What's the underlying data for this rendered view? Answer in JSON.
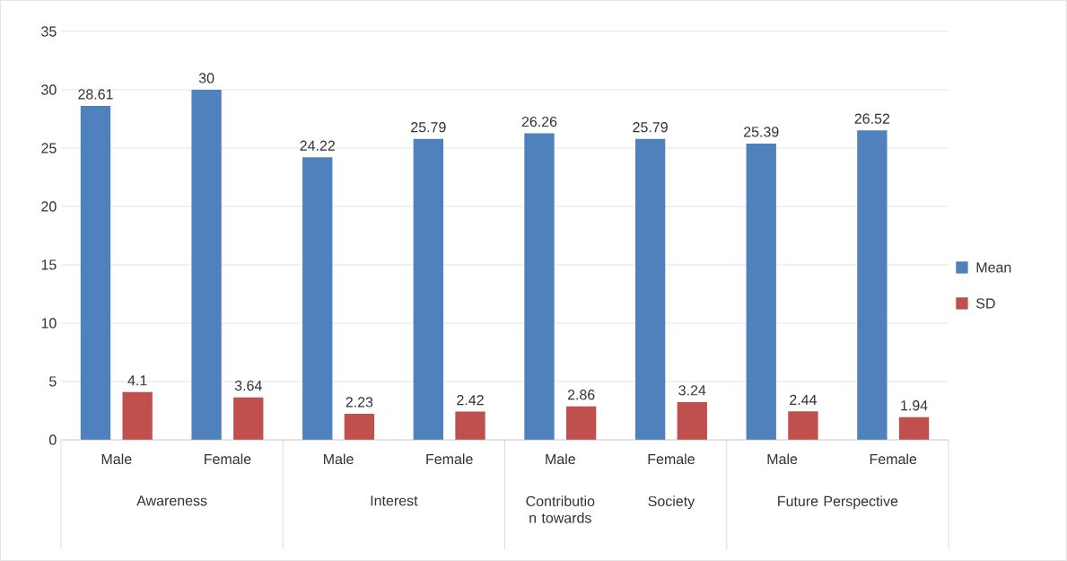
{
  "chart_data": {
    "type": "bar",
    "categories": [
      "Male",
      "Female",
      "Male",
      "Female",
      "Male",
      "Female",
      "Male",
      "Female"
    ],
    "series": [
      {
        "name": "Mean",
        "color": "#4f81bd",
        "values": [
          28.61,
          30,
          24.22,
          25.79,
          26.26,
          25.79,
          25.39,
          26.52
        ]
      },
      {
        "name": "SD",
        "color": "#c0504d",
        "values": [
          4.1,
          3.64,
          2.23,
          2.42,
          2.86,
          3.24,
          2.44,
          1.94
        ]
      }
    ],
    "annotations": [
      "Awareness",
      "Interest",
      "Contributio n towards",
      "Society",
      "Future Perspective"
    ],
    "ylim": [
      0,
      35
    ],
    "yticks": [
      0,
      5,
      10,
      15,
      20,
      25,
      30,
      35
    ],
    "grid": "y",
    "legend": "right",
    "data_labels": true
  }
}
